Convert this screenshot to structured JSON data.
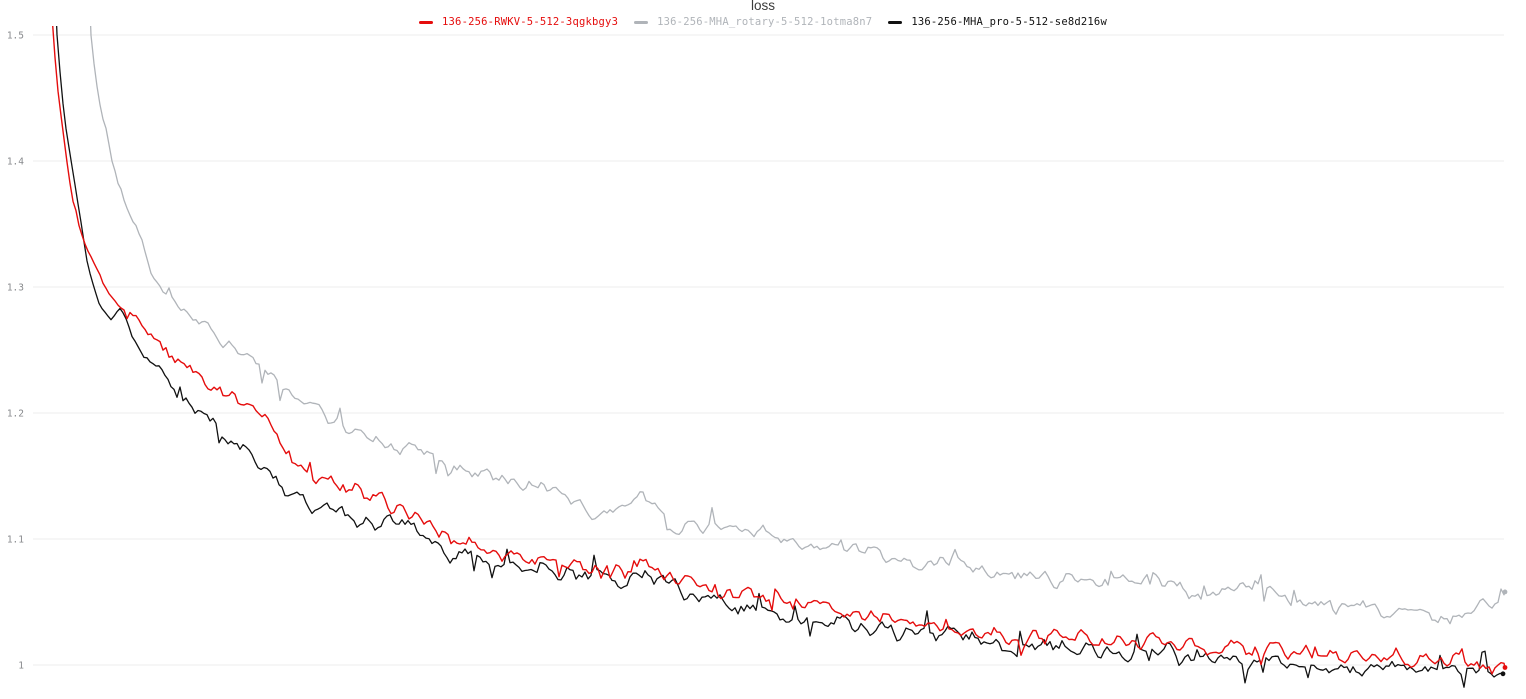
{
  "theme": {
    "background": "#ffffff",
    "grid_color": "#ededed",
    "tick_label_color": "#87898c",
    "title_color": "#3b3b3b"
  },
  "chart_data": {
    "type": "line",
    "title": "loss",
    "xlabel": "",
    "ylabel": "",
    "legend_position": "top-center",
    "grid": "horizontal-only",
    "x_axis": {
      "visible_labels": false
    },
    "y_axis": {
      "range_shown": [
        0.985,
        1.53
      ],
      "ticks": [
        {
          "value": 1,
          "label": "1"
        },
        {
          "value": 1.1,
          "label": "1.1"
        },
        {
          "value": 1.2,
          "label": "1.2"
        },
        {
          "value": 1.3,
          "label": "1.3"
        },
        {
          "value": 1.4,
          "label": "1.4"
        },
        {
          "value": 1.5,
          "label": "1.5"
        }
      ]
    },
    "series": [
      {
        "name": "136-256-RWKV-5-512-3qgkbgy3",
        "color": "#e50d0d",
        "line_width": 1.4,
        "z": 3,
        "noise": 0.0062,
        "end_dot": true,
        "points": [
          [
            49,
            1.56
          ],
          [
            53,
            1.5
          ],
          [
            58,
            1.455
          ],
          [
            62,
            1.43
          ],
          [
            67,
            1.4
          ],
          [
            72,
            1.372
          ],
          [
            78,
            1.35
          ],
          [
            85,
            1.332
          ],
          [
            95,
            1.316
          ],
          [
            105,
            1.302
          ],
          [
            118,
            1.29
          ],
          [
            130,
            1.28
          ],
          [
            150,
            1.263
          ],
          [
            170,
            1.246
          ],
          [
            185,
            1.235
          ],
          [
            200,
            1.226
          ],
          [
            215,
            1.217
          ],
          [
            232,
            1.21
          ],
          [
            250,
            1.202
          ],
          [
            265,
            1.192
          ],
          [
            280,
            1.178
          ],
          [
            295,
            1.161
          ],
          [
            305,
            1.157
          ],
          [
            315,
            1.146
          ],
          [
            330,
            1.146
          ],
          [
            350,
            1.139
          ],
          [
            370,
            1.132
          ],
          [
            400,
            1.123
          ],
          [
            425,
            1.115
          ],
          [
            450,
            1.105
          ],
          [
            475,
            1.098
          ],
          [
            500,
            1.091
          ],
          [
            525,
            1.086
          ],
          [
            550,
            1.083
          ],
          [
            575,
            1.081
          ],
          [
            600,
            1.078
          ],
          [
            625,
            1.072
          ],
          [
            645,
            1.078
          ],
          [
            665,
            1.072
          ],
          [
            700,
            1.062
          ],
          [
            725,
            1.06
          ],
          [
            750,
            1.057
          ],
          [
            775,
            1.053
          ],
          [
            800,
            1.049
          ],
          [
            825,
            1.045
          ],
          [
            850,
            1.041
          ],
          [
            875,
            1.039
          ],
          [
            900,
            1.036
          ],
          [
            925,
            1.033
          ],
          [
            950,
            1.03
          ],
          [
            975,
            1.028
          ],
          [
            1000,
            1.025
          ],
          [
            1030,
            1.022
          ],
          [
            1050,
            1.024
          ],
          [
            1075,
            1.022
          ],
          [
            1100,
            1.02
          ],
          [
            1125,
            1.018
          ],
          [
            1150,
            1.021
          ],
          [
            1175,
            1.016
          ],
          [
            1200,
            1.012
          ],
          [
            1225,
            1.014
          ],
          [
            1250,
            1.013
          ],
          [
            1275,
            1.011
          ],
          [
            1300,
            1.01
          ],
          [
            1325,
            1.007
          ],
          [
            1350,
            1.004
          ],
          [
            1375,
            1.007
          ],
          [
            1400,
            1.006
          ],
          [
            1425,
            1.004
          ],
          [
            1450,
            1.004
          ],
          [
            1475,
            1.001
          ],
          [
            1505,
            0.998
          ]
        ]
      },
      {
        "name": "136-256-MHA_rotary-5-512-1otma8n7",
        "color": "#b0b4b9",
        "line_width": 1.3,
        "z": 1,
        "noise": 0.005,
        "end_dot": true,
        "points": [
          [
            88,
            1.56
          ],
          [
            91,
            1.5
          ],
          [
            95,
            1.47
          ],
          [
            100,
            1.445
          ],
          [
            105,
            1.429
          ],
          [
            112,
            1.4
          ],
          [
            118,
            1.385
          ],
          [
            125,
            1.368
          ],
          [
            133,
            1.352
          ],
          [
            142,
            1.338
          ],
          [
            152,
            1.31
          ],
          [
            160,
            1.3
          ],
          [
            172,
            1.292
          ],
          [
            185,
            1.283
          ],
          [
            200,
            1.271
          ],
          [
            212,
            1.266
          ],
          [
            222,
            1.255
          ],
          [
            235,
            1.248
          ],
          [
            250,
            1.242
          ],
          [
            262,
            1.234
          ],
          [
            278,
            1.224
          ],
          [
            300,
            1.213
          ],
          [
            320,
            1.202
          ],
          [
            340,
            1.192
          ],
          [
            360,
            1.183
          ],
          [
            380,
            1.177
          ],
          [
            395,
            1.168
          ],
          [
            410,
            1.173
          ],
          [
            425,
            1.166
          ],
          [
            450,
            1.155
          ],
          [
            470,
            1.152
          ],
          [
            500,
            1.149
          ],
          [
            520,
            1.143
          ],
          [
            550,
            1.139
          ],
          [
            570,
            1.132
          ],
          [
            600,
            1.118
          ],
          [
            620,
            1.125
          ],
          [
            640,
            1.133
          ],
          [
            660,
            1.12
          ],
          [
            680,
            1.107
          ],
          [
            700,
            1.11
          ],
          [
            720,
            1.108
          ],
          [
            750,
            1.107
          ],
          [
            775,
            1.1
          ],
          [
            800,
            1.095
          ],
          [
            825,
            1.093
          ],
          [
            850,
            1.091
          ],
          [
            875,
            1.086
          ],
          [
            900,
            1.081
          ],
          [
            925,
            1.08
          ],
          [
            950,
            1.083
          ],
          [
            975,
            1.077
          ],
          [
            1000,
            1.073
          ],
          [
            1025,
            1.072
          ],
          [
            1050,
            1.07
          ],
          [
            1075,
            1.068
          ],
          [
            1100,
            1.067
          ],
          [
            1125,
            1.068
          ],
          [
            1150,
            1.07
          ],
          [
            1175,
            1.063
          ],
          [
            1200,
            1.057
          ],
          [
            1225,
            1.059
          ],
          [
            1250,
            1.062
          ],
          [
            1275,
            1.055
          ],
          [
            1300,
            1.049
          ],
          [
            1325,
            1.047
          ],
          [
            1350,
            1.046
          ],
          [
            1375,
            1.045
          ],
          [
            1400,
            1.044
          ],
          [
            1425,
            1.04
          ],
          [
            1450,
            1.038
          ],
          [
            1470,
            1.042
          ],
          [
            1485,
            1.046
          ],
          [
            1505,
            1.058
          ]
        ]
      },
      {
        "name": "136-256-MHA_pro-5-512-se8d216w",
        "color": "#111111",
        "line_width": 1.3,
        "z": 2,
        "noise": 0.006,
        "end_dot": true,
        "points": [
          [
            54,
            1.56
          ],
          [
            57,
            1.5
          ],
          [
            61,
            1.46
          ],
          [
            65,
            1.43
          ],
          [
            70,
            1.405
          ],
          [
            76,
            1.375
          ],
          [
            82,
            1.345
          ],
          [
            88,
            1.315
          ],
          [
            95,
            1.298
          ],
          [
            102,
            1.285
          ],
          [
            110,
            1.276
          ],
          [
            120,
            1.28
          ],
          [
            128,
            1.268
          ],
          [
            140,
            1.25
          ],
          [
            150,
            1.237
          ],
          [
            162,
            1.228
          ],
          [
            175,
            1.218
          ],
          [
            190,
            1.208
          ],
          [
            205,
            1.198
          ],
          [
            220,
            1.188
          ],
          [
            235,
            1.177
          ],
          [
            250,
            1.165
          ],
          [
            265,
            1.156
          ],
          [
            280,
            1.148
          ],
          [
            300,
            1.133
          ],
          [
            320,
            1.125
          ],
          [
            340,
            1.118
          ],
          [
            360,
            1.113
          ],
          [
            385,
            1.115
          ],
          [
            400,
            1.113
          ],
          [
            420,
            1.104
          ],
          [
            450,
            1.089
          ],
          [
            475,
            1.083
          ],
          [
            500,
            1.078
          ],
          [
            525,
            1.077
          ],
          [
            550,
            1.075
          ],
          [
            575,
            1.072
          ],
          [
            600,
            1.07
          ],
          [
            625,
            1.067
          ],
          [
            650,
            1.072
          ],
          [
            675,
            1.062
          ],
          [
            700,
            1.052
          ],
          [
            725,
            1.048
          ],
          [
            750,
            1.044
          ],
          [
            775,
            1.04
          ],
          [
            800,
            1.036
          ],
          [
            825,
            1.033
          ],
          [
            850,
            1.03
          ],
          [
            875,
            1.026
          ],
          [
            900,
            1.022
          ],
          [
            925,
            1.026
          ],
          [
            950,
            1.028
          ],
          [
            975,
            1.022
          ],
          [
            1000,
            1.017
          ],
          [
            1025,
            1.015
          ],
          [
            1050,
            1.014
          ],
          [
            1075,
            1.012
          ],
          [
            1100,
            1.01
          ],
          [
            1125,
            1.011
          ],
          [
            1150,
            1.012
          ],
          [
            1175,
            1.008
          ],
          [
            1200,
            1.004
          ],
          [
            1225,
            1.005
          ],
          [
            1250,
            1.006
          ],
          [
            1275,
            1.004
          ],
          [
            1300,
            1.002
          ],
          [
            1325,
            0.999
          ],
          [
            1350,
            0.996
          ],
          [
            1375,
            0.997
          ],
          [
            1400,
            0.998
          ],
          [
            1425,
            0.997
          ],
          [
            1450,
            0.996
          ],
          [
            1475,
            0.995
          ],
          [
            1503,
            0.993
          ]
        ]
      }
    ]
  }
}
